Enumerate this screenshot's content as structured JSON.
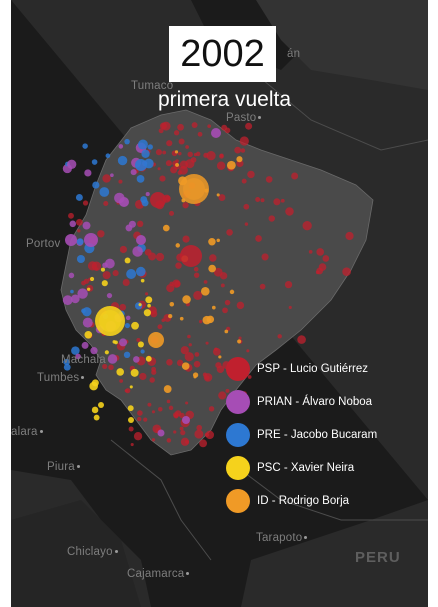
{
  "title": {
    "year": "2002",
    "round": "primera vuelta"
  },
  "places": [
    {
      "id": "tumaco",
      "label": "Tumaco"
    },
    {
      "id": "pasto",
      "label": "Pasto"
    },
    {
      "id": "portoviejo",
      "label": "Portov"
    },
    {
      "id": "machala",
      "label": "Machala"
    },
    {
      "id": "tumbes",
      "label": "Tumbes"
    },
    {
      "id": "talara",
      "label": "alara"
    },
    {
      "id": "piura",
      "label": "Piura"
    },
    {
      "id": "tarapoto",
      "label": "Tarapoto"
    },
    {
      "id": "chiclayo",
      "label": "Chiclayo"
    },
    {
      "id": "cajamarca",
      "label": "Cajamarca"
    },
    {
      "id": "pan",
      "label": "án"
    },
    {
      "id": "peru",
      "label": "PERU"
    }
  ],
  "legend": [
    {
      "label": "PSP - Lucio Gutiérrez",
      "color": "#c0202e"
    },
    {
      "label": "PRIAN - Álvaro Noboa",
      "color": "#a64db5"
    },
    {
      "label": "PRE - Jacobo Bucaram",
      "color": "#2d78d2"
    },
    {
      "label": "PSC - Xavier Neira",
      "color": "#f5d21c"
    },
    {
      "label": "ID - Rodrigo Borja",
      "color": "#f09a26"
    }
  ],
  "colors": {
    "background": "#1b1b1b",
    "land": "#353535",
    "highlight_land": "#4a4a4a"
  }
}
